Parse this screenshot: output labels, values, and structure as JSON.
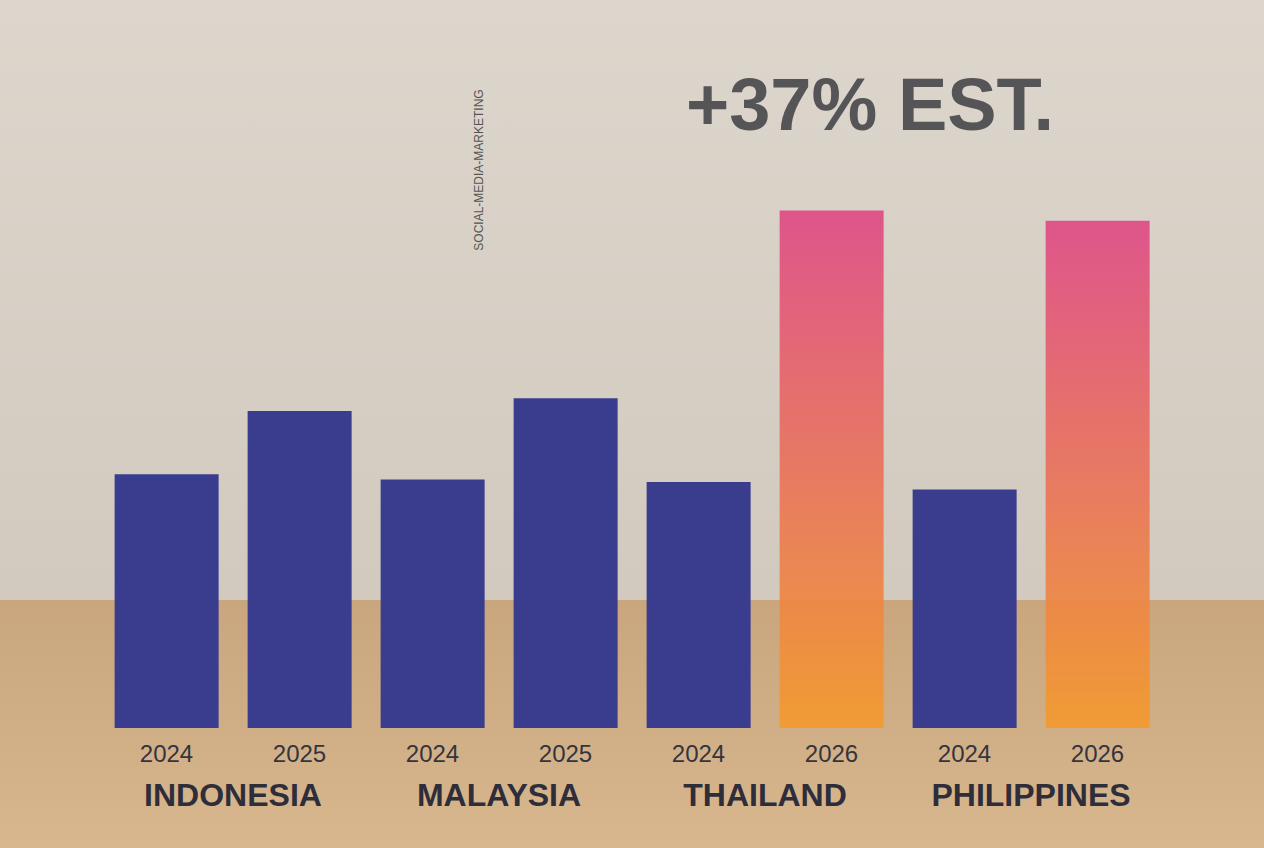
{
  "chart_data": {
    "type": "bar",
    "categories": [
      "2024",
      "2025",
      "2024",
      "2025",
      "2024",
      "2026",
      "2024",
      "2026"
    ],
    "groups": [
      "INDONESIA",
      "MALAYSIA",
      "THAILAND",
      "PHILIPPINES"
    ],
    "values": [
      100,
      125,
      98,
      130,
      97,
      204,
      94,
      200
    ],
    "colors": [
      "#3a3d8e",
      "#3a3d8e",
      "#3a3d8e",
      "#3a3d8e",
      "#3a3d8e",
      "#f39a2e",
      "#3a3d8e",
      "#f39a2e"
    ],
    "ylim": [
      0,
      220
    ],
    "tick_labels": false,
    "grid": false,
    "annotations": [
      "+37% EST.",
      "SOCIAL-MEDIA-MARKETING"
    ]
  }
}
